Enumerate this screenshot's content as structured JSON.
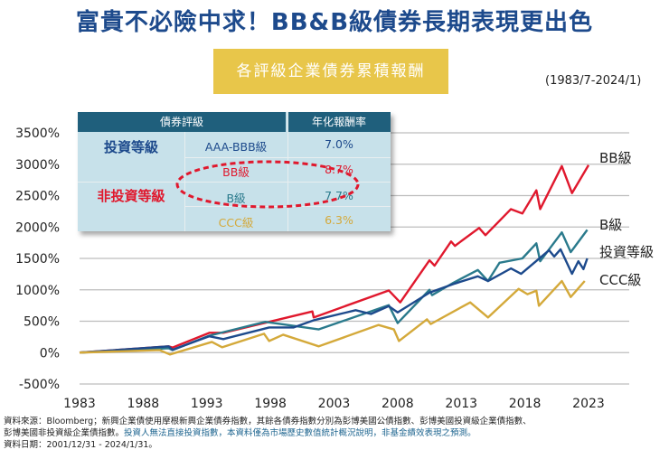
{
  "title": "富貴不必險中求！BB&B級債券長期表現更出色",
  "subtitle": "各評級企業債券累積報酬",
  "period": "(1983/7-2024/1)",
  "table": {
    "headers": [
      "債券評級",
      "年化報酬率"
    ],
    "groups": [
      "投資等級",
      "非投資等級"
    ],
    "rows": [
      {
        "rating": "AAA-BBB級",
        "return": "7.0%",
        "color": "#1d4a8c"
      },
      {
        "rating": "BB級",
        "return": "8.7%",
        "color": "#e0182d"
      },
      {
        "rating": "B級",
        "return": "7.7%",
        "color": "#2a7a8c"
      },
      {
        "rating": "CCC級",
        "return": "6.3%",
        "color": "#d4a93a"
      }
    ]
  },
  "chart_data": {
    "type": "line",
    "xlabel": "",
    "ylabel": "",
    "xlim": [
      1983,
      2023
    ],
    "ylim": [
      -500,
      3500
    ],
    "xticks": [
      "1983",
      "1988",
      "1993",
      "1998",
      "2003",
      "2008",
      "2013",
      "2018",
      "2023"
    ],
    "yticks": [
      "-500%",
      "0%",
      "500%",
      "1000%",
      "1500%",
      "2000%",
      "2500%",
      "3000%",
      "3500%"
    ],
    "grid": "horizontal",
    "series": [
      {
        "name": "BB級",
        "color": "#e0182d",
        "points": [
          [
            1983,
            0
          ],
          [
            1990,
            100
          ],
          [
            1990.3,
            80
          ],
          [
            1993.2,
            315
          ],
          [
            1994.3,
            315
          ],
          [
            1997.9,
            490
          ],
          [
            2001.3,
            655
          ],
          [
            2001.4,
            560
          ],
          [
            2007.3,
            990
          ],
          [
            2008.2,
            800
          ],
          [
            2010.5,
            1470
          ],
          [
            2010.9,
            1385
          ],
          [
            2012.2,
            1770
          ],
          [
            2012.5,
            1700
          ],
          [
            2014.4,
            1985
          ],
          [
            2014.9,
            1870
          ],
          [
            2016.9,
            2285
          ],
          [
            2017.8,
            2215
          ],
          [
            2018.9,
            2585
          ],
          [
            2019.2,
            2285
          ],
          [
            2020.9,
            2970
          ],
          [
            2021.7,
            2540
          ],
          [
            2023,
            2985
          ]
        ]
      },
      {
        "name": "B級",
        "color": "#2a7a8c",
        "points": [
          [
            1983,
            0
          ],
          [
            1990,
            70
          ],
          [
            1990.3,
            40
          ],
          [
            1993.2,
            270
          ],
          [
            1997.6,
            490
          ],
          [
            2001.8,
            370
          ],
          [
            2007.3,
            755
          ],
          [
            2008,
            470
          ],
          [
            2010.5,
            1000
          ],
          [
            2010.7,
            915
          ],
          [
            2012.4,
            1115
          ],
          [
            2014.3,
            1315
          ],
          [
            2015.1,
            1140
          ],
          [
            2016,
            1430
          ],
          [
            2017.8,
            1500
          ],
          [
            2018.9,
            1740
          ],
          [
            2019.2,
            1455
          ],
          [
            2020.9,
            1915
          ],
          [
            2021.6,
            1600
          ],
          [
            2022.9,
            1955
          ]
        ]
      },
      {
        "name": "投資等級",
        "color": "#1d4a8c",
        "points": [
          [
            1983,
            0
          ],
          [
            1990,
            100
          ],
          [
            1990.3,
            45
          ],
          [
            1993.2,
            260
          ],
          [
            1994.3,
            215
          ],
          [
            1997.9,
            400
          ],
          [
            1999.8,
            400
          ],
          [
            2001.4,
            515
          ],
          [
            2004.7,
            675
          ],
          [
            2005.9,
            615
          ],
          [
            2007.3,
            740
          ],
          [
            2008,
            640
          ],
          [
            2010.5,
            955
          ],
          [
            2012.5,
            1100
          ],
          [
            2014.3,
            1215
          ],
          [
            2015.1,
            1140
          ],
          [
            2016.9,
            1340
          ],
          [
            2017.7,
            1255
          ],
          [
            2019.9,
            1630
          ],
          [
            2020.3,
            1530
          ],
          [
            2020.8,
            1645
          ],
          [
            2021.7,
            1255
          ],
          [
            2022.2,
            1455
          ],
          [
            2022.6,
            1330
          ],
          [
            2022.9,
            1500
          ]
        ]
      },
      {
        "name": "CCC級",
        "color": "#d4a93a",
        "points": [
          [
            1983,
            0
          ],
          [
            1989.3,
            40
          ],
          [
            1990.1,
            -30
          ],
          [
            1993.4,
            170
          ],
          [
            1994.2,
            85
          ],
          [
            1997.5,
            300
          ],
          [
            1997.9,
            185
          ],
          [
            1999,
            285
          ],
          [
            2001.8,
            100
          ],
          [
            2006.5,
            440
          ],
          [
            2007.7,
            370
          ],
          [
            2008.1,
            185
          ],
          [
            2010.3,
            530
          ],
          [
            2010.6,
            455
          ],
          [
            2013.7,
            800
          ],
          [
            2015.1,
            560
          ],
          [
            2017.5,
            1015
          ],
          [
            2018.2,
            930
          ],
          [
            2018.9,
            985
          ],
          [
            2019.1,
            745
          ],
          [
            2020.9,
            1140
          ],
          [
            2021.6,
            885
          ],
          [
            2022.7,
            1140
          ]
        ]
      }
    ]
  },
  "notes": {
    "line1": "資料來源：Bloomberg；新興企業債使用摩根新興企業債券指數，其餘各債券指數分別為彭博美國公債指數、彭博美國投資級企業債指數、",
    "line2a": "彭博美國非投資級企業債指數。",
    "line2b": "投資人無法直接投資指數，本資料僅為市場歷史數值統計概況說明，非基金績效表現之預測。",
    "line3": "資料日期：2001/12/31 - 2024/1/31。"
  }
}
